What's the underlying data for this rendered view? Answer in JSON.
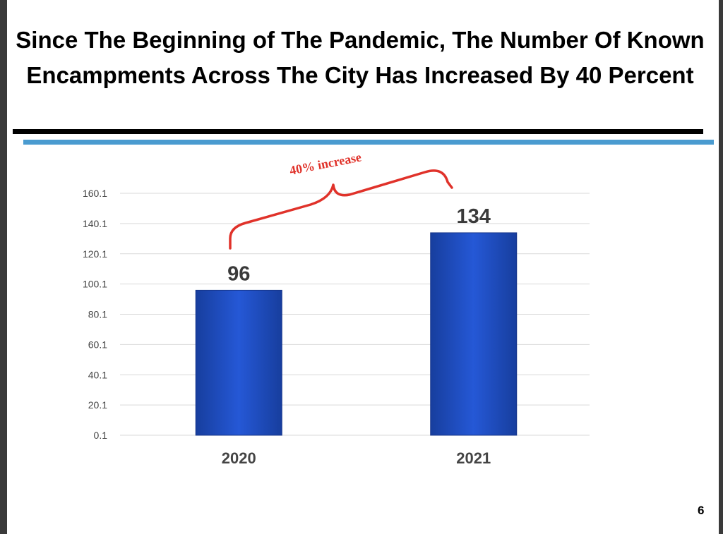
{
  "title": "Since The Beginning of The Pandemic, The Number Of Known Encampments Across The City Has Increased By 40 Percent",
  "page_number": "6",
  "colors": {
    "bar": "#1f4fc0",
    "accent_blue_rule": "#4a9bd0",
    "annotation": "#e0322a"
  },
  "chart_data": {
    "type": "bar",
    "categories": [
      "2020",
      "2021"
    ],
    "values": [
      96,
      134
    ],
    "data_labels": [
      "96",
      "134"
    ],
    "yticks": [
      "0.1",
      "20.1",
      "40.1",
      "60.1",
      "80.1",
      "100.1",
      "120.1",
      "140.1",
      "160.1"
    ],
    "ylim": [
      0.1,
      160.1
    ],
    "grid": true,
    "annotation": "40% increase",
    "xlabel": "",
    "ylabel": ""
  }
}
